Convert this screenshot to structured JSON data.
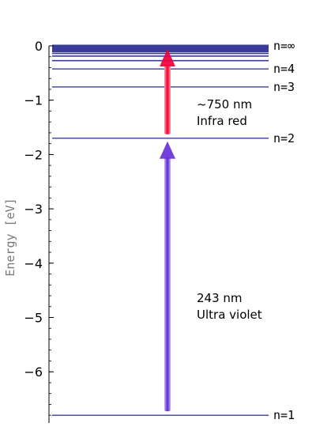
{
  "diagram": {
    "axis": {
      "label": "Energy  [eV]",
      "range": [
        -6.8,
        0
      ],
      "major_ticks": [
        {
          "value": 0,
          "label": "0"
        },
        {
          "value": -1,
          "label": "−1"
        },
        {
          "value": -2,
          "label": "−2"
        },
        {
          "value": -3,
          "label": "−3"
        },
        {
          "value": -4,
          "label": "−4"
        },
        {
          "value": -5,
          "label": "−5"
        },
        {
          "value": -6,
          "label": "−6"
        }
      ],
      "minor_step": 0.2
    },
    "levels": [
      {
        "n": 1,
        "energy": -6.8,
        "label": "n=1"
      },
      {
        "n": 2,
        "energy": -1.7,
        "label": "n=2"
      },
      {
        "n": 3,
        "energy": -0.756,
        "label": "n=3"
      },
      {
        "n": 4,
        "energy": -0.425,
        "label": "n=4"
      },
      {
        "n": 5,
        "energy": -0.272,
        "label": ""
      },
      {
        "n": 6,
        "energy": -0.189,
        "label": ""
      },
      {
        "n": 7,
        "energy": -0.139,
        "label": ""
      },
      {
        "n": 8,
        "energy": -0.106,
        "label": ""
      },
      {
        "n": 9,
        "energy": -0.084,
        "label": ""
      },
      {
        "n": 10,
        "energy": -0.068,
        "label": ""
      },
      {
        "n": 11,
        "energy": -0.056,
        "label": ""
      },
      {
        "n": 12,
        "energy": -0.047,
        "label": ""
      },
      {
        "n": 13,
        "energy": -0.04,
        "label": ""
      },
      {
        "n": 14,
        "energy": -0.035,
        "label": ""
      },
      {
        "n": 15,
        "energy": -0.03,
        "label": ""
      },
      {
        "n": "inf",
        "energy": 0,
        "label": "n=∞"
      }
    ],
    "transitions": [
      {
        "from_energy": -6.8,
        "to_energy": -1.7,
        "wavelength": "243 nm",
        "band": "Ultra violet",
        "color": "#6a2fd6"
      },
      {
        "from_energy": -1.7,
        "to_energy": 0,
        "wavelength": "~750 nm",
        "band": "Infra red",
        "color": "#f0003a"
      }
    ],
    "colors": {
      "level_line": "#3b3b9a",
      "axis": "#000000"
    }
  }
}
